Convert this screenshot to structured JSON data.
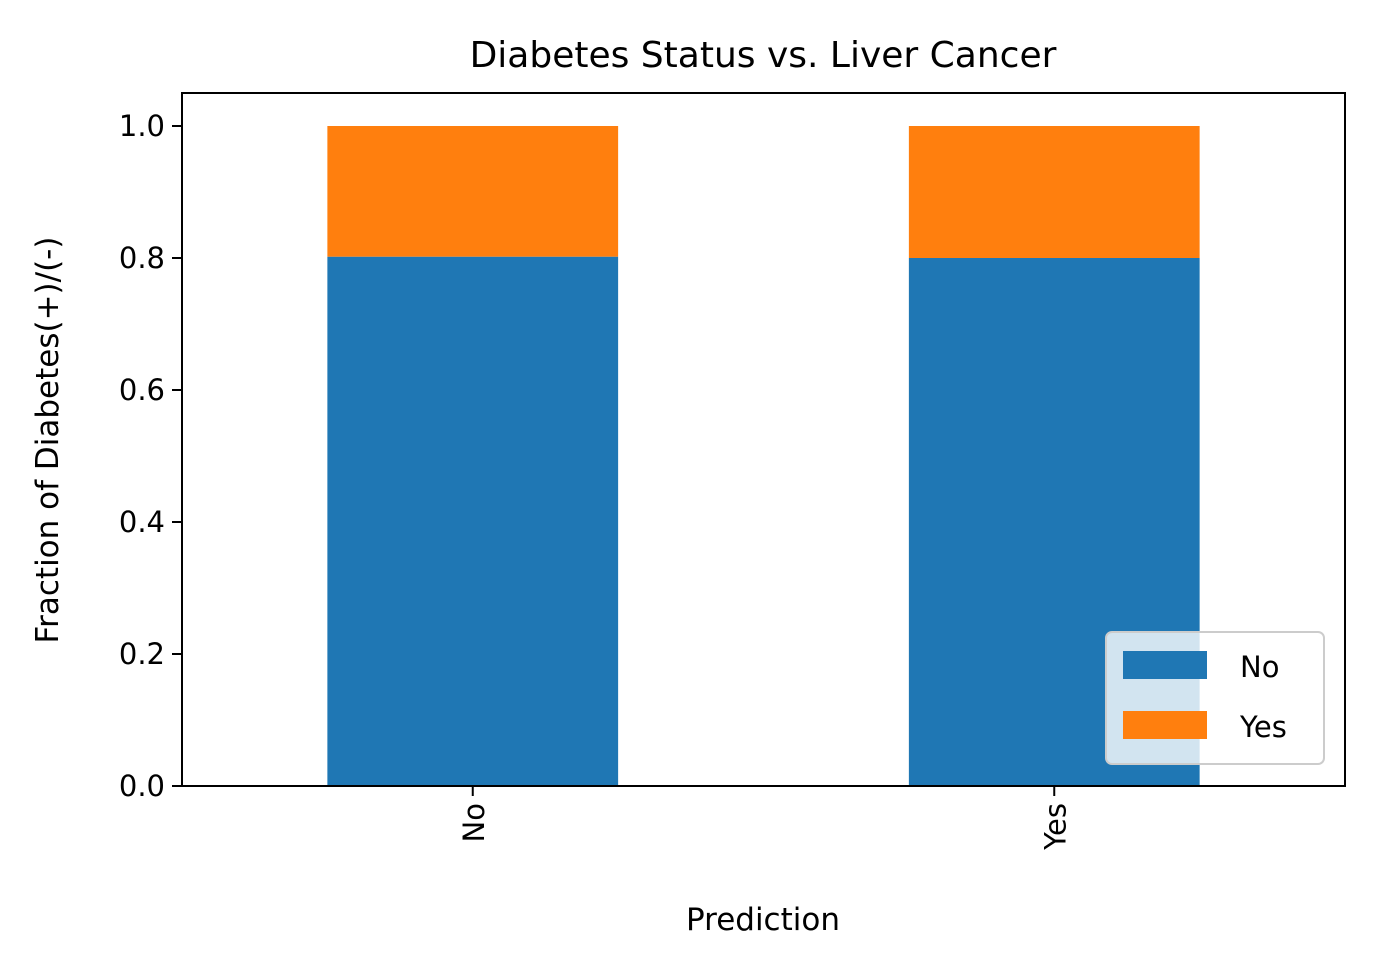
{
  "chart_data": {
    "type": "bar",
    "stacked": true,
    "title": "Diabetes Status vs. Liver Cancer",
    "xlabel": "Prediction",
    "ylabel": "Fraction of Diabetes(+)/(-)",
    "categories": [
      "No",
      "Yes"
    ],
    "series": [
      {
        "name": "No",
        "color": "#1f77b4",
        "values": [
          0.802,
          0.8
        ]
      },
      {
        "name": "Yes",
        "color": "#ff7f0e",
        "values": [
          0.198,
          0.2
        ]
      }
    ],
    "ylim": [
      0,
      1.05
    ],
    "yticks": [
      0.0,
      0.2,
      0.4,
      0.6,
      0.8,
      1.0
    ],
    "ytick_labels": [
      "0.0",
      "0.2",
      "0.4",
      "0.6",
      "0.8",
      "1.0"
    ],
    "grid": false,
    "legend_placement": "lower-right"
  }
}
